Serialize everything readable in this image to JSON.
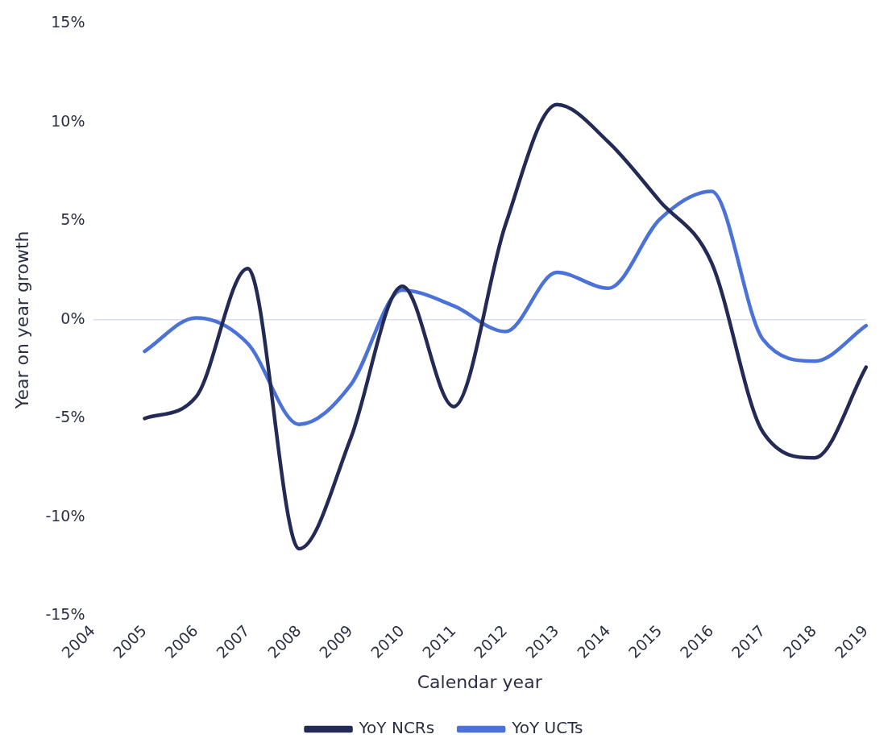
{
  "chart_data": {
    "type": "line",
    "xlabel": "Calendar year",
    "ylabel": "Year on year growth",
    "categories": [
      "2004",
      "2005",
      "2006",
      "2007",
      "2008",
      "2009",
      "2010",
      "2011",
      "2012",
      "2013",
      "2014",
      "2015",
      "2016",
      "2017",
      "2018",
      "2019"
    ],
    "series": [
      {
        "name": "YoY NCRs",
        "color": "#232a55",
        "values": [
          null,
          -5.0,
          -3.9,
          2.6,
          -11.6,
          -6.0,
          1.7,
          -4.4,
          4.8,
          10.9,
          9.0,
          6.0,
          2.9,
          -5.7,
          -7.0,
          -2.4
        ]
      },
      {
        "name": "YoY UCTs",
        "color": "#4a72d8",
        "values": [
          null,
          -1.6,
          0.1,
          -1.2,
          -5.3,
          -3.3,
          1.5,
          0.7,
          -0.6,
          2.4,
          1.6,
          5.1,
          6.5,
          -1.0,
          -2.1,
          -0.3
        ]
      }
    ],
    "ylim": [
      -15,
      15
    ],
    "yticks": [
      {
        "value": -15,
        "label": "-15%"
      },
      {
        "value": -10,
        "label": "-10%"
      },
      {
        "value": -5,
        "label": "-5%"
      },
      {
        "value": 0,
        "label": "0%"
      },
      {
        "value": 5,
        "label": "5%"
      },
      {
        "value": 10,
        "label": "10%"
      },
      {
        "value": 15,
        "label": "15%"
      }
    ],
    "ref_lines": [
      {
        "axis": "y",
        "value": 0,
        "color": "#d9dff0"
      }
    ],
    "grid": false,
    "legend": "bottom",
    "marker": "none",
    "line_style": "solid"
  }
}
